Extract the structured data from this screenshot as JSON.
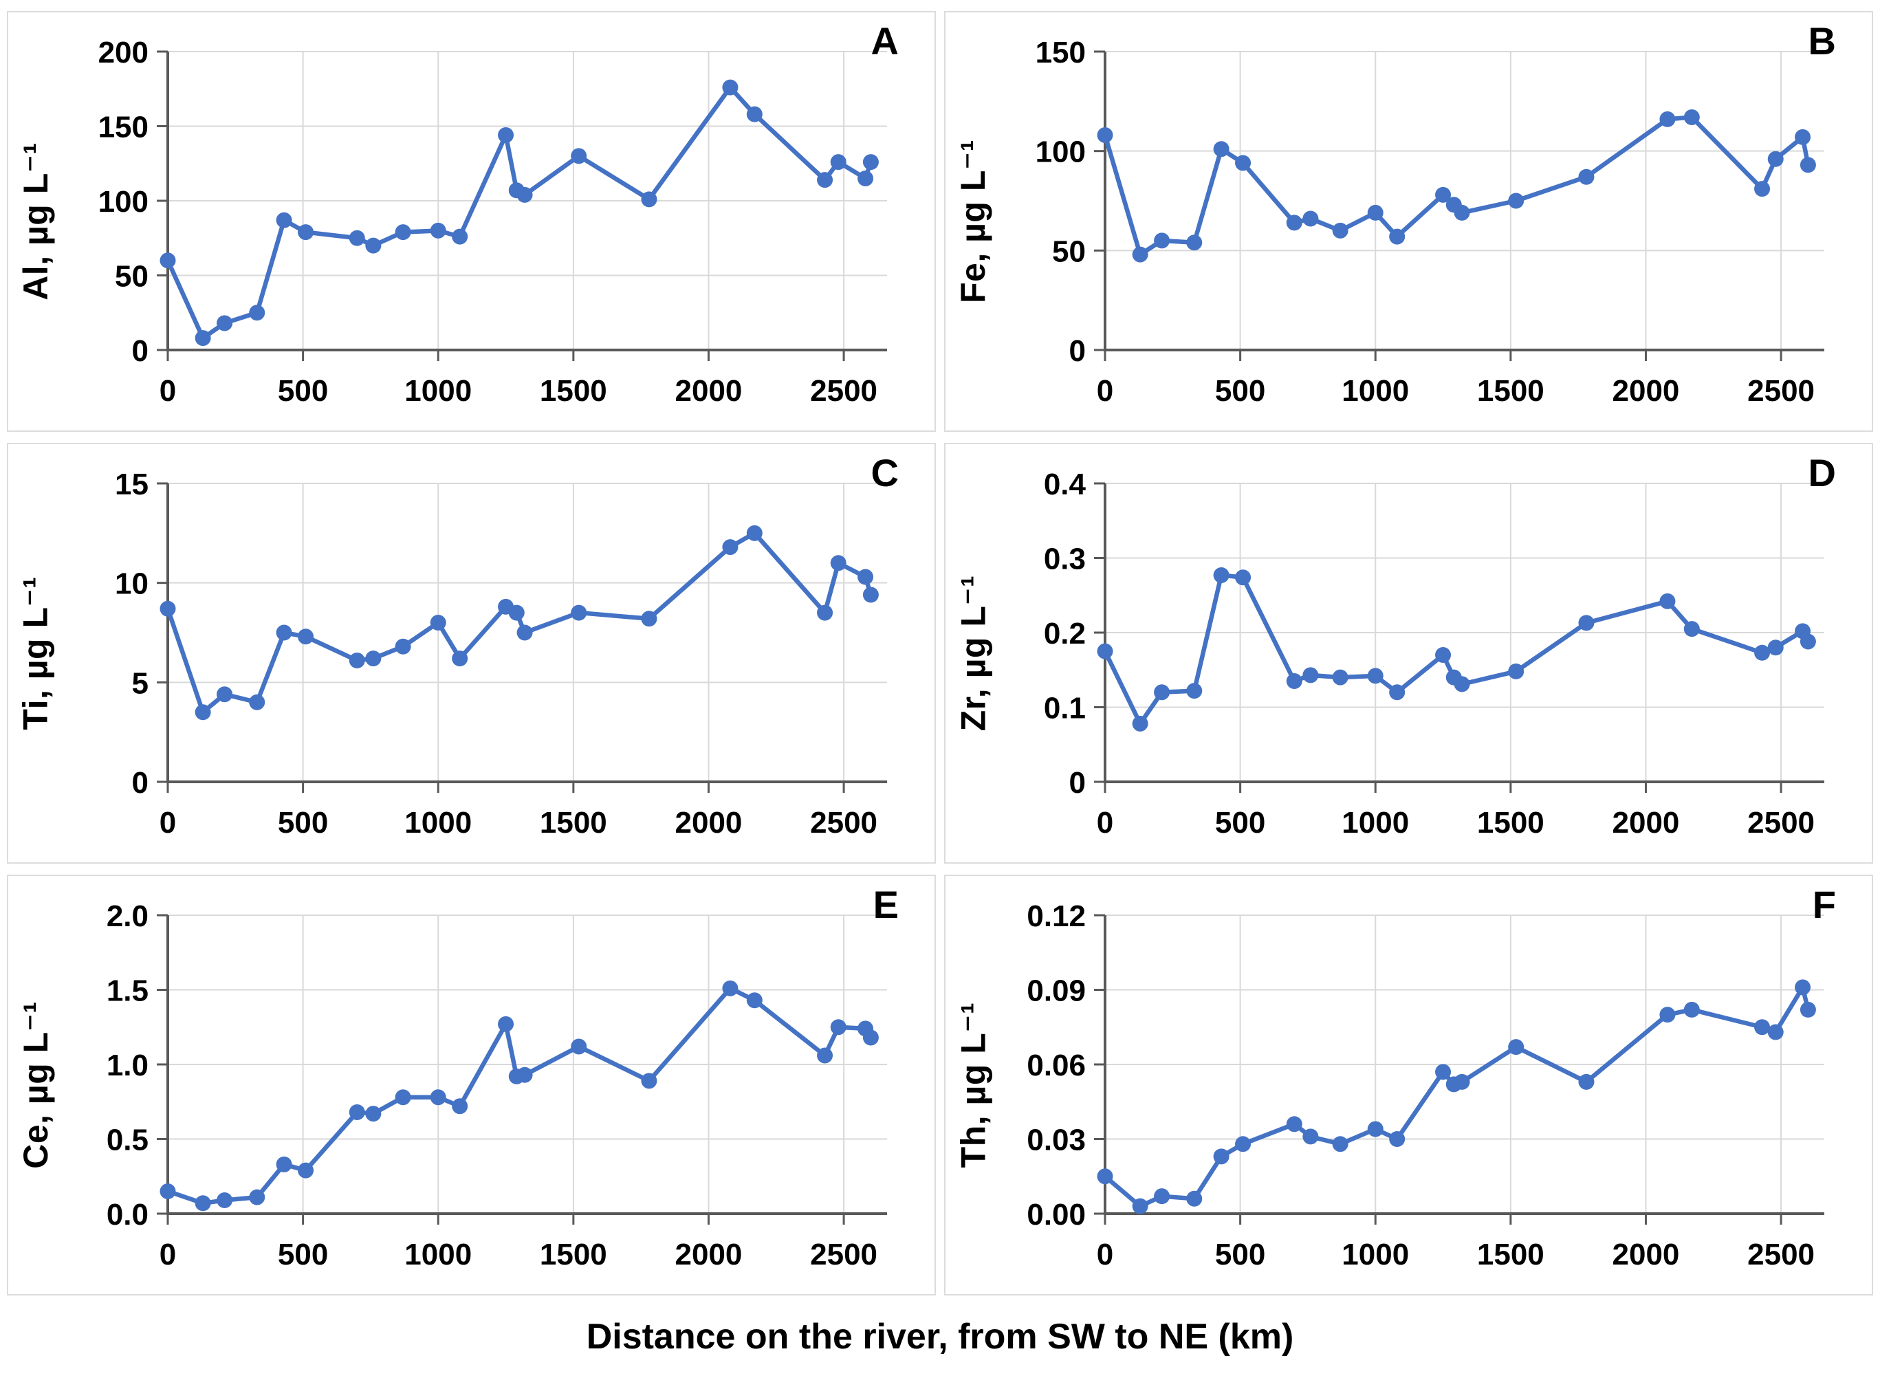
{
  "figure": {
    "xlabel": "Distance on the river, from SW to NE (km)",
    "line_color": "#4472C4",
    "grid_color": "#d9d9d9",
    "axis_color": "#595959",
    "text_color": "#000000",
    "legend": "none",
    "grid": "on"
  },
  "chart_data": [
    {
      "type": "line",
      "panel": "A",
      "ylabel": "Al, µg L⁻¹",
      "x": [
        0,
        130,
        210,
        330,
        430,
        510,
        700,
        760,
        870,
        1000,
        1080,
        1250,
        1290,
        1320,
        1520,
        1780,
        2080,
        2170,
        2430,
        2480,
        2580,
        2600
      ],
      "values": [
        60,
        8,
        18,
        25,
        87,
        79,
        75,
        70,
        79,
        80,
        76,
        144,
        107,
        104,
        130,
        101,
        176,
        158,
        114,
        126,
        115,
        126
      ],
      "xlim": [
        0,
        2660
      ],
      "ylim": [
        0,
        200
      ],
      "xticks": [
        "0",
        "500",
        "1000",
        "1500",
        "2000",
        "2500"
      ],
      "yticks": [
        "0",
        "50",
        "100",
        "150",
        "200"
      ]
    },
    {
      "type": "line",
      "panel": "B",
      "ylabel": "Fe, µg L⁻¹",
      "x": [
        0,
        130,
        210,
        330,
        430,
        510,
        700,
        760,
        870,
        1000,
        1080,
        1250,
        1290,
        1320,
        1520,
        1780,
        2080,
        2170,
        2430,
        2480,
        2580,
        2600
      ],
      "values": [
        108,
        48,
        55,
        54,
        101,
        94,
        64,
        66,
        60,
        69,
        57,
        78,
        73,
        69,
        75,
        87,
        116,
        117,
        81,
        96,
        107,
        93
      ],
      "xlim": [
        0,
        2660
      ],
      "ylim": [
        0,
        150
      ],
      "xticks": [
        "0",
        "500",
        "1000",
        "1500",
        "2000",
        "2500"
      ],
      "yticks": [
        "0",
        "50",
        "100",
        "150"
      ]
    },
    {
      "type": "line",
      "panel": "C",
      "ylabel": "Ti, µg L⁻¹",
      "x": [
        0,
        130,
        210,
        330,
        430,
        510,
        700,
        760,
        870,
        1000,
        1080,
        1250,
        1290,
        1320,
        1520,
        1780,
        2080,
        2170,
        2430,
        2480,
        2580,
        2600
      ],
      "values": [
        8.7,
        3.5,
        4.4,
        4.0,
        7.5,
        7.3,
        6.1,
        6.2,
        6.8,
        8.0,
        6.2,
        8.8,
        8.5,
        7.5,
        8.5,
        8.2,
        11.8,
        12.5,
        8.5,
        11.0,
        10.3,
        9.4
      ],
      "xlim": [
        0,
        2660
      ],
      "ylim": [
        0,
        15
      ],
      "xticks": [
        "0",
        "500",
        "1000",
        "1500",
        "2000",
        "2500"
      ],
      "yticks": [
        "0",
        "5",
        "10",
        "15"
      ]
    },
    {
      "type": "line",
      "panel": "D",
      "ylabel": "Zr, µg L⁻¹",
      "x": [
        0,
        130,
        210,
        330,
        430,
        510,
        700,
        760,
        870,
        1000,
        1080,
        1250,
        1290,
        1320,
        1520,
        1780,
        2080,
        2170,
        2430,
        2480,
        2580,
        2600
      ],
      "values": [
        0.175,
        0.078,
        0.12,
        0.122,
        0.277,
        0.274,
        0.135,
        0.143,
        0.14,
        0.142,
        0.12,
        0.17,
        0.14,
        0.131,
        0.148,
        0.213,
        0.242,
        0.205,
        0.173,
        0.18,
        0.202,
        0.188
      ],
      "xlim": [
        0,
        2660
      ],
      "ylim": [
        0,
        0.4
      ],
      "xticks": [
        "0",
        "500",
        "1000",
        "1500",
        "2000",
        "2500"
      ],
      "yticks": [
        "0",
        "0.1",
        "0.2",
        "0.3",
        "0.4"
      ]
    },
    {
      "type": "line",
      "panel": "E",
      "ylabel": "Ce, µg L⁻¹",
      "x": [
        0,
        130,
        210,
        330,
        430,
        510,
        700,
        760,
        870,
        1000,
        1080,
        1250,
        1290,
        1320,
        1520,
        1780,
        2080,
        2170,
        2430,
        2480,
        2580,
        2600
      ],
      "values": [
        0.15,
        0.07,
        0.09,
        0.11,
        0.33,
        0.29,
        0.68,
        0.67,
        0.78,
        0.78,
        0.72,
        1.27,
        0.92,
        0.93,
        1.12,
        0.89,
        1.51,
        1.43,
        1.06,
        1.25,
        1.24,
        1.18
      ],
      "xlim": [
        0,
        2660
      ],
      "ylim": [
        0,
        2.0
      ],
      "xticks": [
        "0",
        "500",
        "1000",
        "1500",
        "2000",
        "2500"
      ],
      "yticks": [
        "0.0",
        "0.5",
        "1.0",
        "1.5",
        "2.0"
      ]
    },
    {
      "type": "line",
      "panel": "F",
      "ylabel": "Th, µg L⁻¹",
      "x": [
        0,
        130,
        210,
        330,
        430,
        510,
        700,
        760,
        870,
        1000,
        1080,
        1250,
        1290,
        1320,
        1520,
        1780,
        2080,
        2170,
        2430,
        2480,
        2580,
        2600
      ],
      "values": [
        0.015,
        0.003,
        0.007,
        0.006,
        0.023,
        0.028,
        0.036,
        0.031,
        0.028,
        0.034,
        0.03,
        0.057,
        0.052,
        0.053,
        0.067,
        0.053,
        0.08,
        0.082,
        0.075,
        0.073,
        0.091,
        0.082
      ],
      "xlim": [
        0,
        2660
      ],
      "ylim": [
        0,
        0.12
      ],
      "xticks": [
        "0",
        "500",
        "1000",
        "1500",
        "2000",
        "2500"
      ],
      "yticks": [
        "0.00",
        "0.03",
        "0.06",
        "0.09",
        "0.12"
      ]
    }
  ]
}
